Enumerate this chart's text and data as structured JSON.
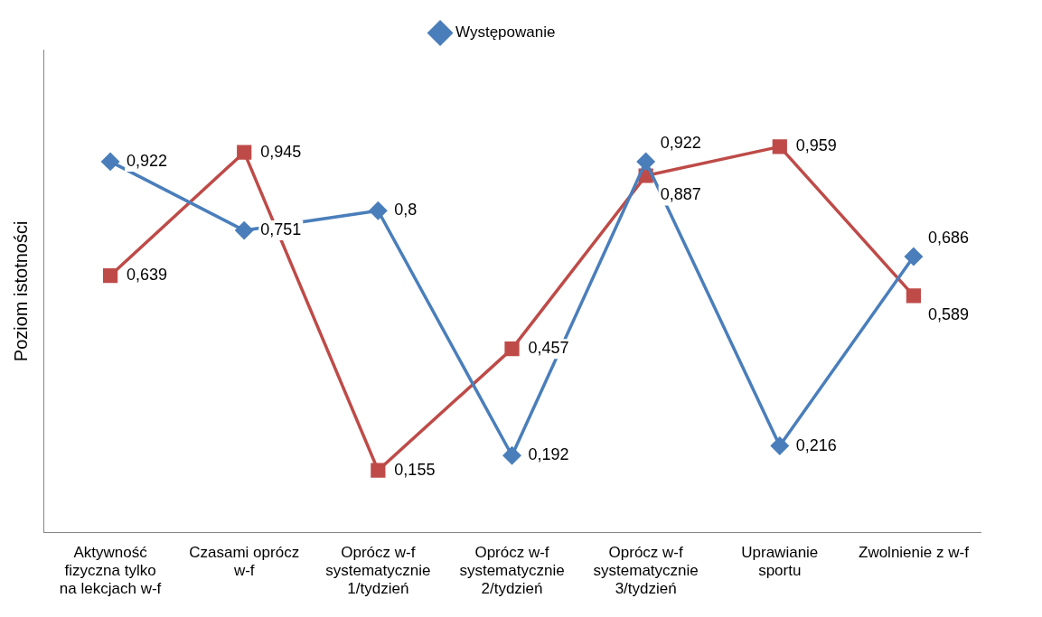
{
  "chart_data": {
    "type": "line",
    "ylabel": "Poziom istotności",
    "categories": [
      "Aktywność fizyczna tylko na lekcjach w-f",
      "Czasami oprócz w-f",
      "Oprócz w-f systematycznie 1/tydzień",
      "Oprócz w-f systematycznie 2/tydzień",
      "Oprócz w-f systematycznie 3/tydzień",
      "Uprawianie sportu",
      "Zwolnienie z w-f"
    ],
    "series": [
      {
        "name": "Występowanie",
        "color": "#4a7ebb",
        "marker": "diamond",
        "values": [
          0.922,
          0.751,
          0.8,
          0.192,
          0.922,
          0.216,
          0.686
        ],
        "value_labels": [
          "0,922",
          "0,751",
          "0,8",
          "0,192",
          "0,922",
          "0,216",
          "0,686"
        ]
      },
      {
        "color": "#be4b48",
        "marker": "square",
        "values": [
          0.639,
          0.945,
          0.155,
          0.457,
          0.887,
          0.959,
          0.589
        ],
        "value_labels": [
          "0,639",
          "0,945",
          "0,155",
          "0,457",
          "0,887",
          "0,959",
          "0,589"
        ]
      }
    ],
    "grid": false,
    "legend": "top",
    "line_style": "solid"
  }
}
